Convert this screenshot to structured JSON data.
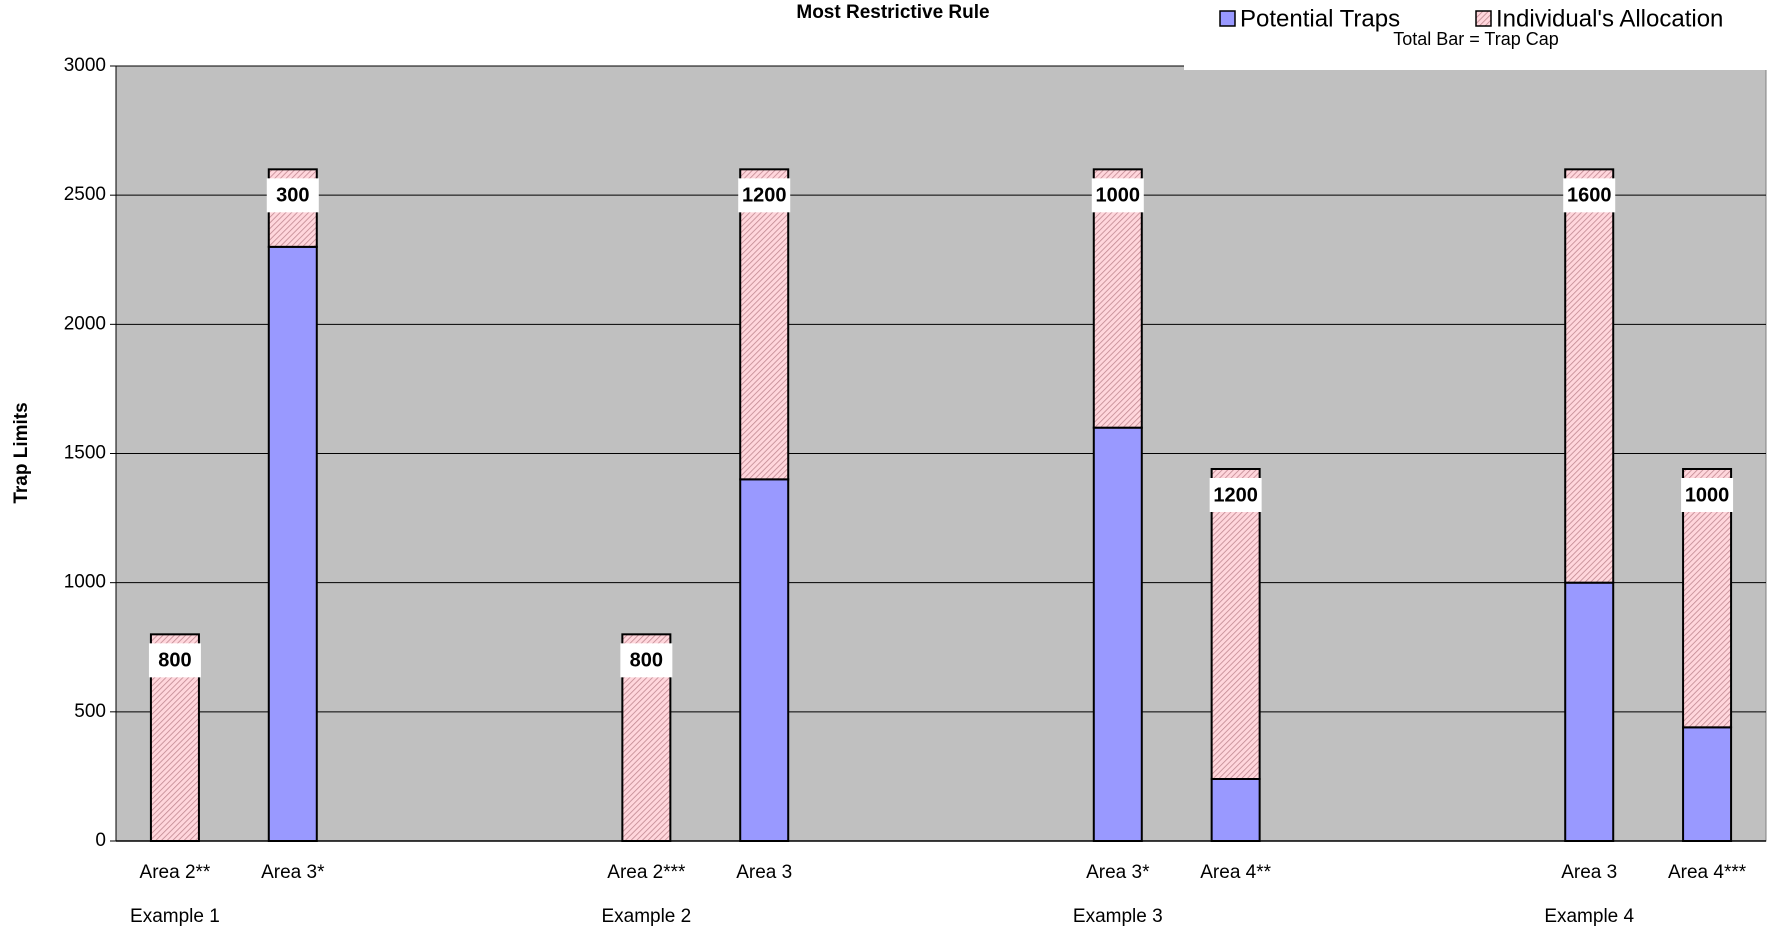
{
  "chart_data": {
    "type": "stacked-bar",
    "title": "Most Restrictive Rule",
    "y_label": "Trap Limits",
    "annotation": "Total Bar = Trap Cap",
    "categories": [
      "Area 2**",
      "Area 3*",
      null,
      null,
      "Area 2***",
      "Area 3",
      null,
      null,
      "Area 3*",
      "Area 4**",
      null,
      null,
      "Area 3",
      "Area 4***"
    ],
    "category_groups": [
      "Example 1",
      null,
      null,
      null,
      "Example 2",
      null,
      null,
      null,
      "Example 3",
      null,
      null,
      null,
      "Example 4",
      null
    ],
    "series": [
      {
        "name": "Potential Traps",
        "color": "#9999ff",
        "values": [
          0,
          2300,
          null,
          null,
          0,
          1400,
          null,
          null,
          1600,
          240,
          null,
          null,
          1000,
          440
        ]
      },
      {
        "name": "Individual's Allocation",
        "color": "#ffc0cb",
        "values": [
          800,
          300,
          null,
          null,
          800,
          1200,
          null,
          null,
          1000,
          1200,
          null,
          null,
          1600,
          1000
        ],
        "labeled": true
      }
    ],
    "ylim": [
      0,
      3000
    ],
    "yticks": [
      0,
      500,
      1000,
      1500,
      2000,
      2500,
      3000
    ],
    "grid": true,
    "legend": "top-right",
    "plot_background": "#c0c0c0"
  }
}
